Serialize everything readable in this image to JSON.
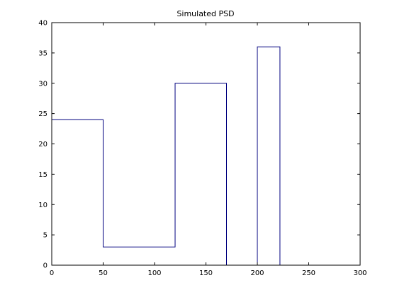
{
  "chart_data": {
    "type": "line",
    "title": "Simulated PSD",
    "xlabel": "",
    "ylabel": "",
    "xlim": [
      0,
      300
    ],
    "ylim": [
      0,
      40
    ],
    "xticks": [
      0,
      50,
      100,
      150,
      200,
      250,
      300
    ],
    "yticks": [
      0,
      5,
      10,
      15,
      20,
      25,
      30,
      35,
      40
    ],
    "grid": false,
    "legend": "none",
    "series": [
      {
        "color": "#00007f",
        "x": [
          0,
          50,
          50,
          120,
          120,
          170,
          170,
          200,
          200,
          222,
          222,
          300
        ],
        "y": [
          24,
          24,
          3,
          3,
          30,
          30,
          0,
          0,
          36,
          36,
          0,
          0
        ]
      }
    ]
  }
}
